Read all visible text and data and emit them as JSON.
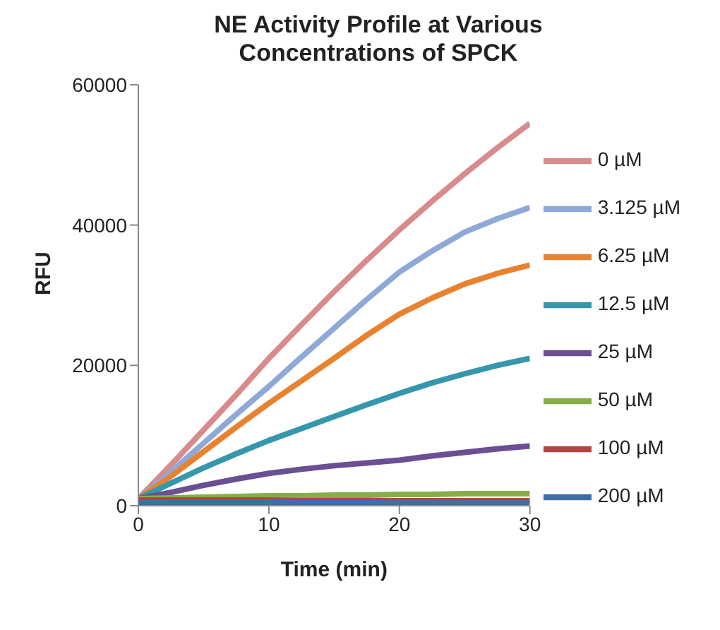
{
  "chart_data": {
    "type": "line",
    "title": "NE Activity Profile at Various Concentrations of SPCK",
    "xlabel": "Time (min)",
    "ylabel": "RFU",
    "x": [
      0,
      2.5,
      5,
      7.5,
      10,
      12.5,
      15,
      17.5,
      20,
      22.5,
      25,
      27.5,
      30
    ],
    "series": [
      {
        "name": "0 µM",
        "color": "#d88a8c",
        "values": [
          1000,
          5800,
          10800,
          15800,
          21000,
          25800,
          30500,
          35000,
          39300,
          43400,
          47300,
          51000,
          54500
        ]
      },
      {
        "name": "3.125 µM",
        "color": "#8ea9d8",
        "values": [
          1000,
          4800,
          8900,
          13000,
          17000,
          21200,
          25300,
          29400,
          33300,
          36300,
          39000,
          40900,
          42500
        ]
      },
      {
        "name": "6.25 µM",
        "color": "#e9822f",
        "values": [
          1000,
          4200,
          7700,
          11200,
          14600,
          17800,
          21000,
          24300,
          27300,
          29600,
          31600,
          33100,
          34300
        ]
      },
      {
        "name": "12.5 µM",
        "color": "#3597ab",
        "values": [
          1000,
          3200,
          5400,
          7400,
          9300,
          11000,
          12700,
          14400,
          16000,
          17500,
          18800,
          20000,
          21000
        ]
      },
      {
        "name": "25 µM",
        "color": "#6b4f93",
        "values": [
          1000,
          1900,
          2900,
          3800,
          4600,
          5200,
          5700,
          6100,
          6500,
          7100,
          7600,
          8100,
          8500
        ]
      },
      {
        "name": "50 µM",
        "color": "#86ad48",
        "values": [
          1000,
          1100,
          1200,
          1300,
          1400,
          1400,
          1500,
          1500,
          1600,
          1600,
          1700,
          1700,
          1700
        ]
      },
      {
        "name": "100 µM",
        "color": "#b5443f",
        "values": [
          800,
          800,
          800,
          800,
          800,
          700,
          700,
          700,
          700,
          700,
          700,
          700,
          700
        ]
      },
      {
        "name": "200 µM",
        "color": "#3e6fa8",
        "values": [
          400,
          400,
          400,
          400,
          400,
          400,
          400,
          400,
          400,
          400,
          400,
          400,
          400
        ]
      }
    ],
    "xlim": [
      0,
      30
    ],
    "xticks": [
      0,
      10,
      20,
      30
    ],
    "ylim": [
      0,
      60000
    ],
    "yticks": [
      0,
      20000,
      40000,
      60000
    ],
    "grid": false,
    "legend": "right",
    "marker": "none",
    "line_style": "solid"
  }
}
